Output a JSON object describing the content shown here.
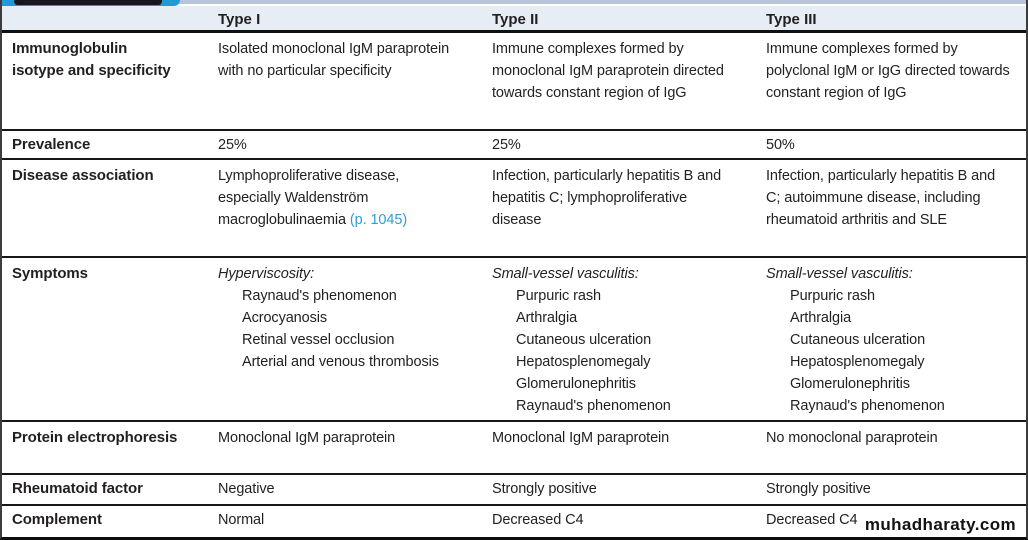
{
  "table": {
    "header": {
      "type1": "Type I",
      "type2": "Type II",
      "type3": "Type III"
    },
    "row_immunoglobulin": {
      "label": "Immunoglobulin isotype and specificity",
      "type1": "Isolated monoclonal IgM paraprotein with no particular specificity",
      "type2": "Immune complexes formed by monoclonal IgM paraprotein directed towards constant region of IgG",
      "type3": "Immune complexes formed by polyclonal IgM or IgG directed towards constant region of IgG"
    },
    "row_prevalence": {
      "label": "Prevalence",
      "type1": "25%",
      "type2": "25%",
      "type3": "50%"
    },
    "row_disease": {
      "label": "Disease association",
      "type1_text": "Lymphoproliferative disease, especially Waldenström macroglobulinaemia ",
      "type1_link": "(p. 1045)",
      "type2": "Infection, particularly hepatitis B and hepatitis C; lymphoproliferative disease",
      "type3": "Infection, particularly hepatitis B and C; autoimmune disease, including rheumatoid arthritis and SLE"
    },
    "row_symptoms": {
      "label": "Symptoms",
      "type1": {
        "heading": "Hyperviscosity:",
        "items": [
          "Raynaud's phenomenon",
          "Acrocyanosis",
          "Retinal vessel occlusion",
          "Arterial and venous thrombosis"
        ]
      },
      "type2": {
        "heading": "Small-vessel vasculitis:",
        "items": [
          "Purpuric rash",
          "Arthralgia",
          "Cutaneous ulceration",
          "Hepatosplenomegaly",
          "Glomerulonephritis",
          "Raynaud's phenomenon"
        ]
      },
      "type3": {
        "heading": "Small-vessel vasculitis:",
        "items": [
          "Purpuric rash",
          "Arthralgia",
          "Cutaneous ulceration",
          "Hepatosplenomegaly",
          "Glomerulonephritis",
          "Raynaud's phenomenon"
        ]
      }
    },
    "row_protein": {
      "label": "Protein electrophoresis",
      "type1": "Monoclonal IgM paraprotein",
      "type2": "Monoclonal IgM paraprotein",
      "type3": "No monoclonal paraprotein"
    },
    "row_rheumatoid": {
      "label": "Rheumatoid factor",
      "type1": "Negative",
      "type2": "Strongly positive",
      "type3": "Strongly positive"
    },
    "row_complement": {
      "label": "Complement",
      "type1": "Normal",
      "type2": "Decreased C4",
      "type3": "Decreased C4"
    }
  },
  "watermark": "muhadharaty.com",
  "colors": {
    "tab_blue": "#1e9bd7",
    "strip_lavender": "#b6c3d9",
    "header_bg": "#e7edf4",
    "link_blue": "#2d9fd6",
    "rule_black": "#161616"
  }
}
